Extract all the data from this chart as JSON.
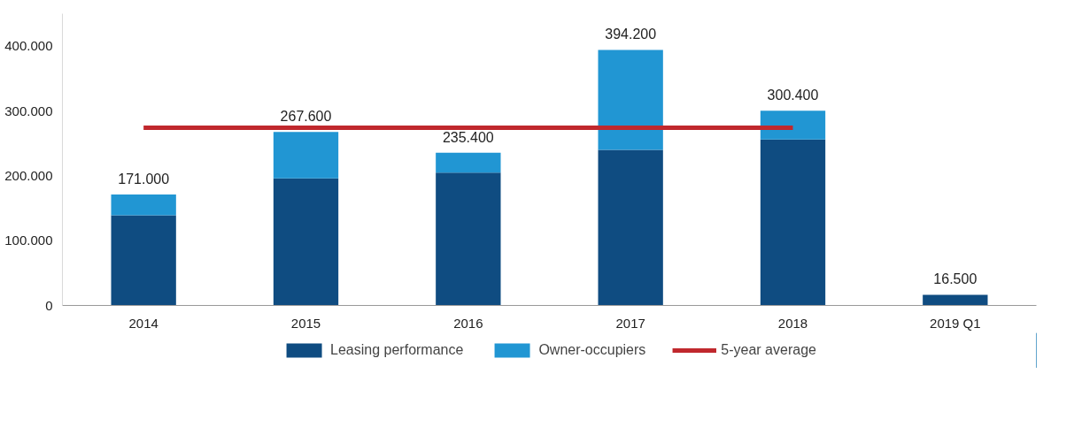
{
  "chart_data": {
    "type": "bar",
    "stacked": true,
    "categories": [
      "2014",
      "2015",
      "2016",
      "2017",
      "2018",
      "2019 Q1"
    ],
    "series": [
      {
        "name": "Leasing performance",
        "color": "#0f4c81",
        "values": [
          139000,
          196000,
          205000,
          240000,
          256000,
          16500
        ]
      },
      {
        "name": "Owner-occupiers",
        "color": "#2196d3",
        "values": [
          32000,
          71600,
          30400,
          154200,
          44400,
          0
        ]
      },
      {
        "name": "5-year average",
        "type": "line",
        "color": "#c0282d",
        "values": [
          274000,
          274000,
          274000,
          274000,
          274000,
          null
        ]
      }
    ],
    "totals": [
      "171.000",
      "267.600",
      "235.400",
      "394.200",
      "300.400",
      "16.500"
    ],
    "ylim": [
      0,
      450000
    ],
    "yticks": [
      {
        "value": 0,
        "label": "0"
      },
      {
        "value": 100000,
        "label": "100.000"
      },
      {
        "value": 200000,
        "label": "200.000"
      },
      {
        "value": 300000,
        "label": "300.000"
      },
      {
        "value": 400000,
        "label": "400.000"
      }
    ],
    "grid": false,
    "legend": "bottom"
  }
}
